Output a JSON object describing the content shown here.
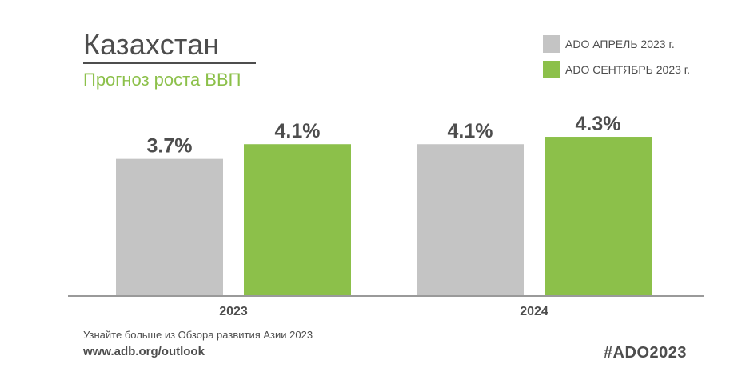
{
  "header": {
    "title": "Казахстан",
    "subtitle": "Прогноз роста ВВП"
  },
  "legend": {
    "items": [
      {
        "label": "ADO АПРЕЛЬ 2023 г.",
        "color": "#c4c4c4"
      },
      {
        "label": "ADO СЕНТЯБРЬ 2023 г.",
        "color": "#8cc04a"
      }
    ]
  },
  "chart_data": {
    "type": "bar",
    "categories": [
      "2023",
      "2024"
    ],
    "series": [
      {
        "name": "ADO АПРЕЛЬ 2023 г.",
        "values": [
          3.7,
          4.1
        ],
        "labels": [
          "3.7%",
          "4.1%"
        ],
        "color": "#c4c4c4"
      },
      {
        "name": "ADO СЕНТЯБРЬ 2023 г.",
        "values": [
          4.1,
          4.3
        ],
        "labels": [
          "4.1%",
          "4.3%"
        ],
        "color": "#8cc04a"
      }
    ],
    "title": "Прогноз роста ВВП",
    "xlabel": "",
    "ylabel": "",
    "ylim": [
      0,
      5.43
    ],
    "grid": false,
    "legend_position": "top-right"
  },
  "footer": {
    "note": "Узнайте больше из Обзора развития Азии 2023",
    "url": "www.adb.org/outlook",
    "hashtag": "#ADO2023"
  }
}
